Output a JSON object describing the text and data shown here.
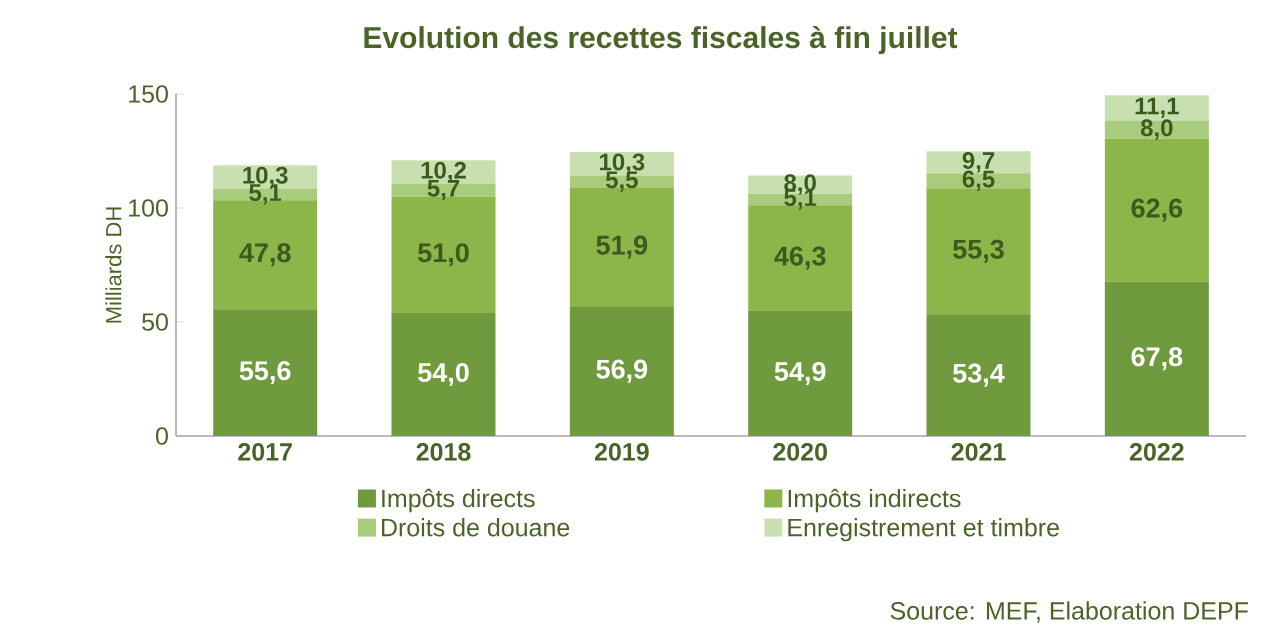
{
  "chart_data": {
    "type": "bar",
    "stacked": true,
    "title": "Evolution des recettes fiscales à fin juillet",
    "ylabel": "Milliards DH",
    "categories": [
      "2017",
      "2018",
      "2019",
      "2020",
      "2021",
      "2022"
    ],
    "series": [
      {
        "name": "Impôts directs",
        "color": "#6f9a3e",
        "values": [
          55.6,
          54.0,
          56.9,
          54.9,
          53.4,
          67.8
        ],
        "value_labels": [
          "55,6",
          "54,0",
          "56,9",
          "54,9",
          "53,4",
          "67,8"
        ]
      },
      {
        "name": "Impôts indirects",
        "color": "#8cb54a",
        "values": [
          47.8,
          51.0,
          51.9,
          46.3,
          55.3,
          62.6
        ],
        "value_labels": [
          "47,8",
          "51,0",
          "51,9",
          "46,3",
          "55,3",
          "62,6"
        ]
      },
      {
        "name": "Droits de douane",
        "color": "#a8cc7c",
        "values": [
          5.1,
          5.7,
          5.5,
          5.1,
          6.5,
          8.0
        ],
        "value_labels": [
          "5,1",
          "5,7",
          "5,5",
          "5,1",
          "6,5",
          "8,0"
        ]
      },
      {
        "name": "Enregistrement et timbre",
        "color": "#c8e0b0",
        "values": [
          10.3,
          10.2,
          10.3,
          8.0,
          9.7,
          11.1
        ],
        "value_labels": [
          "10,3",
          "10,2",
          "10,3",
          "8,0",
          "9,7",
          "11,1"
        ]
      }
    ],
    "ylim": [
      0,
      150
    ],
    "yticks": [
      0,
      50,
      100,
      150
    ],
    "legend": "bottom",
    "annotations": [
      "Source: MEF, Elaboration DEPF"
    ]
  }
}
